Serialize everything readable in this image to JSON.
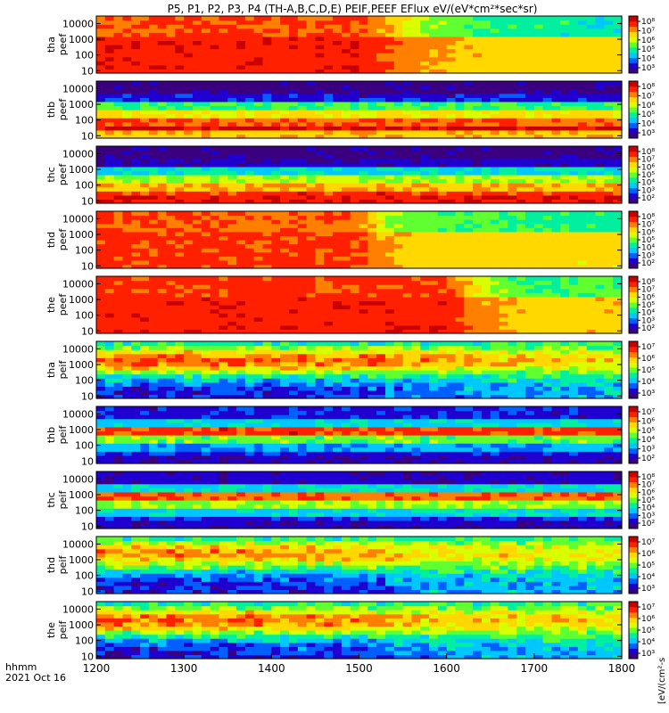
{
  "title": "P5, P1, P2, P3, P4 (TH-A,B,C,D,E) PEIF,PEEF EFlux eV/(eV*cm²*sec*sr)",
  "time_axis": {
    "label_line1": "hhmm",
    "label_line2": "2021 Oct 16",
    "ticks": [
      "1200",
      "1300",
      "1400",
      "1500",
      "1600",
      "1700",
      "1800"
    ]
  },
  "colorbar_unit_label": "[eV/(cm²-s",
  "colormap": [
    "#3b0080",
    "#1f00d0",
    "#0060ff",
    "#00c8ff",
    "#00f0a0",
    "#60ff30",
    "#d8ff00",
    "#ffd800",
    "#ff8000",
    "#ff2000",
    "#c80000"
  ],
  "chart_data": [
    {
      "type": "heatmap",
      "panel": "tha-peef",
      "ylabel": [
        "tha",
        "peef"
      ],
      "yscale": "log",
      "ylim": [
        7,
        30000
      ],
      "yticks": [
        "10000",
        "1000",
        "100",
        "10"
      ],
      "xlim": [
        1200,
        1800
      ],
      "colorbar": {
        "ticks": [
          "10⁸",
          "10⁷",
          "10⁶",
          "10⁵",
          "10⁴",
          "10³"
        ]
      },
      "profile": {
        "type": "hot_high",
        "low_level": 0.88,
        "top_level": 0.83,
        "transition": [
          [
            1200,
            1.0
          ],
          [
            1500,
            1.0
          ],
          [
            1580,
            0.6
          ],
          [
            1650,
            0.45
          ],
          [
            1800,
            0.4
          ]
        ]
      }
    },
    {
      "type": "heatmap",
      "panel": "thb-peef",
      "ylabel": [
        "thb",
        "peef"
      ],
      "yscale": "log",
      "ylim": [
        7,
        30000
      ],
      "yticks": [
        "10000",
        "1000",
        "100",
        "10"
      ],
      "xlim": [
        1200,
        1800
      ],
      "colorbar": {
        "ticks": [
          "10⁸",
          "10⁷",
          "10⁶",
          "10⁵",
          "10⁴",
          "10³"
        ]
      },
      "profile": {
        "type": "banded",
        "bands": [
          [
            10000,
            0.05
          ],
          [
            3000,
            0.15
          ],
          [
            1000,
            0.45
          ],
          [
            300,
            0.65
          ],
          [
            100,
            0.8
          ],
          [
            30,
            0.95
          ],
          [
            10,
            0.7
          ]
        ]
      }
    },
    {
      "type": "heatmap",
      "panel": "thc-peef",
      "ylabel": [
        "thc",
        "peef"
      ],
      "yscale": "log",
      "ylim": [
        7,
        30000
      ],
      "yticks": [
        "10000",
        "1000",
        "100",
        "10"
      ],
      "xlim": [
        1200,
        1800
      ],
      "colorbar": {
        "ticks": [
          "10⁸",
          "10⁷",
          "10⁶",
          "10⁵",
          "10⁴",
          "10³",
          "10²"
        ]
      },
      "profile": {
        "type": "banded",
        "bands": [
          [
            10000,
            0.05
          ],
          [
            3000,
            0.12
          ],
          [
            1000,
            0.35
          ],
          [
            300,
            0.55
          ],
          [
            100,
            0.72
          ],
          [
            30,
            0.85
          ],
          [
            10,
            0.9
          ]
        ]
      }
    },
    {
      "type": "heatmap",
      "panel": "thd-peef",
      "ylabel": [
        "thd",
        "peef"
      ],
      "yscale": "log",
      "ylim": [
        7,
        30000
      ],
      "yticks": [
        "10000",
        "1000",
        "100",
        "10"
      ],
      "xlim": [
        1200,
        1800
      ],
      "colorbar": {
        "ticks": [
          "10⁸",
          "10⁷",
          "10⁶",
          "10⁵",
          "10⁴",
          "10³",
          "10²"
        ]
      },
      "profile": {
        "type": "hot_high",
        "low_level": 0.85,
        "top_level": 0.82,
        "transition": [
          [
            1200,
            1.0
          ],
          [
            1500,
            0.95
          ],
          [
            1540,
            0.6
          ],
          [
            1600,
            0.5
          ],
          [
            1800,
            0.45
          ]
        ]
      }
    },
    {
      "type": "heatmap",
      "panel": "the-peef",
      "ylabel": [
        "the",
        "peef"
      ],
      "yscale": "log",
      "ylim": [
        7,
        30000
      ],
      "yticks": [
        "10000",
        "1000",
        "100",
        "10"
      ],
      "xlim": [
        1200,
        1800
      ],
      "colorbar": {
        "ticks": [
          "10⁸",
          "10⁷",
          "10⁶",
          "10⁵",
          "10⁴",
          "10³",
          "10²"
        ]
      },
      "profile": {
        "type": "hot_high",
        "low_level": 0.88,
        "top_level": 0.85,
        "transition": [
          [
            1200,
            1.0
          ],
          [
            1600,
            1.0
          ],
          [
            1650,
            0.6
          ],
          [
            1700,
            0.45
          ],
          [
            1800,
            0.5
          ]
        ]
      }
    },
    {
      "type": "heatmap",
      "panel": "tha-peif",
      "ylabel": [
        "tha",
        "peif"
      ],
      "yscale": "log",
      "ylim": [
        7,
        30000
      ],
      "yticks": [
        "10000",
        "1000",
        "100",
        "10"
      ],
      "xlim": [
        1200,
        1800
      ],
      "colorbar": {
        "ticks": [
          "10⁷",
          "10⁶",
          "10⁵",
          "10⁴",
          "10³"
        ]
      },
      "profile": {
        "type": "ion",
        "peak_decade": 3.3,
        "peak_level": 0.7,
        "fade": [
          [
            1200,
            1.0
          ],
          [
            1500,
            0.9
          ],
          [
            1650,
            0.6
          ],
          [
            1800,
            0.55
          ]
        ]
      }
    },
    {
      "type": "heatmap",
      "panel": "thb-peif",
      "ylabel": [
        "thb",
        "peif"
      ],
      "yscale": "log",
      "ylim": [
        7,
        30000
      ],
      "yticks": [
        "10000",
        "1000",
        "100",
        "10"
      ],
      "xlim": [
        1200,
        1800
      ],
      "colorbar": {
        "ticks": [
          "10⁷",
          "10⁶",
          "10⁵",
          "10⁴",
          "10³",
          "10²"
        ]
      },
      "profile": {
        "type": "banded",
        "bands": [
          [
            10000,
            0.15
          ],
          [
            3000,
            0.35
          ],
          [
            1000,
            0.85
          ],
          [
            300,
            0.5
          ],
          [
            100,
            0.3
          ],
          [
            30,
            0.15
          ],
          [
            10,
            0.1
          ]
        ]
      }
    },
    {
      "type": "heatmap",
      "panel": "thc-peif",
      "ylabel": [
        "thc",
        "peif"
      ],
      "yscale": "log",
      "ylim": [
        7,
        30000
      ],
      "yticks": [
        "10000",
        "1000",
        "100",
        "10"
      ],
      "xlim": [
        1200,
        1800
      ],
      "colorbar": {
        "ticks": [
          "10⁸",
          "10⁷",
          "10⁶",
          "10⁵",
          "10⁴",
          "10³",
          "10²"
        ]
      },
      "profile": {
        "type": "banded",
        "bands": [
          [
            10000,
            0.12
          ],
          [
            3000,
            0.35
          ],
          [
            1000,
            0.8
          ],
          [
            300,
            0.55
          ],
          [
            100,
            0.35
          ],
          [
            30,
            0.2
          ],
          [
            10,
            0.12
          ]
        ]
      }
    },
    {
      "type": "heatmap",
      "panel": "thd-peif",
      "ylabel": [
        "thd",
        "peif"
      ],
      "yscale": "log",
      "ylim": [
        7,
        30000
      ],
      "yticks": [
        "10000",
        "1000",
        "100",
        "10"
      ],
      "xlim": [
        1200,
        1800
      ],
      "colorbar": {
        "ticks": [
          "10⁷",
          "10⁶",
          "10⁵",
          "10⁴",
          "10³"
        ]
      },
      "profile": {
        "type": "ion",
        "peak_decade": 3.4,
        "peak_level": 0.65,
        "fade": [
          [
            1200,
            1.0
          ],
          [
            1500,
            0.9
          ],
          [
            1560,
            0.6
          ],
          [
            1800,
            0.5
          ]
        ]
      }
    },
    {
      "type": "heatmap",
      "panel": "the-peif",
      "ylabel": [
        "the",
        "peif"
      ],
      "yscale": "log",
      "ylim": [
        7,
        30000
      ],
      "yticks": [
        "10000",
        "1000",
        "100",
        "10"
      ],
      "xlim": [
        1200,
        1800
      ],
      "colorbar": {
        "ticks": [
          "10⁷",
          "10⁶",
          "10⁵",
          "10⁴",
          "10³"
        ]
      },
      "profile": {
        "type": "ion",
        "peak_decade": 3.3,
        "peak_level": 0.68,
        "fade": [
          [
            1200,
            1.0
          ],
          [
            1500,
            0.9
          ],
          [
            1600,
            0.6
          ],
          [
            1800,
            0.55
          ]
        ]
      }
    }
  ]
}
